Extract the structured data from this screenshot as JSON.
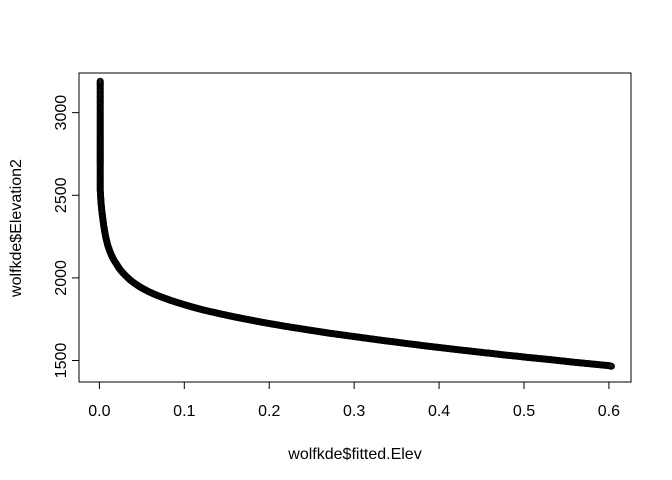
{
  "chart_data": {
    "type": "scatter",
    "xlabel": "wolfkde$fitted.Elev",
    "ylabel": "wolfkde$Elevation2",
    "xlim": [
      -0.024,
      0.626
    ],
    "ylim": [
      1370,
      3240
    ],
    "xticks": [
      0.0,
      0.1,
      0.2,
      0.3,
      0.4,
      0.5,
      0.6
    ],
    "xtick_labels": [
      "0.0",
      "0.1",
      "0.2",
      "0.3",
      "0.4",
      "0.5",
      "0.6"
    ],
    "yticks": [
      1500,
      2000,
      2500,
      3000
    ],
    "ytick_labels": [
      "1500",
      "2000",
      "2500",
      "3000"
    ],
    "grid": false,
    "marker": "open-circle",
    "marker_color": "#000000",
    "series": [
      {
        "x": [
          0.001,
          0.001,
          0.001,
          0.001,
          0.001,
          0.001,
          0.001,
          0.001,
          0.001,
          0.001,
          0.001,
          0.001,
          0.001,
          0.001,
          0.001,
          0.001,
          0.001,
          0.001,
          0.001,
          0.001,
          0.0015,
          0.002,
          0.003,
          0.004,
          0.005,
          0.006,
          0.007,
          0.008,
          0.01,
          0.012,
          0.014,
          0.016,
          0.018,
          0.02,
          0.023,
          0.026,
          0.03,
          0.034,
          0.038,
          0.042,
          0.047,
          0.052,
          0.058,
          0.064,
          0.07,
          0.077,
          0.085,
          0.093,
          0.1,
          0.11,
          0.12,
          0.13,
          0.14,
          0.15,
          0.16,
          0.17,
          0.18,
          0.19,
          0.2,
          0.21,
          0.22,
          0.23,
          0.24,
          0.25,
          0.26,
          0.27,
          0.28,
          0.29,
          0.3,
          0.31,
          0.32,
          0.33,
          0.34,
          0.35,
          0.36,
          0.37,
          0.38,
          0.39,
          0.4,
          0.41,
          0.42,
          0.43,
          0.44,
          0.45,
          0.46,
          0.47,
          0.48,
          0.49,
          0.5,
          0.51,
          0.52,
          0.53,
          0.54,
          0.55,
          0.56,
          0.57,
          0.58,
          0.59,
          0.6,
          0.603
        ],
        "y": [
          3190,
          3160,
          3070,
          3010,
          2980,
          2950,
          2920,
          2890,
          2860,
          2830,
          2800,
          2770,
          2740,
          2710,
          2680,
          2650,
          2620,
          2590,
          2560,
          2530,
          2490,
          2450,
          2400,
          2360,
          2320,
          2290,
          2260,
          2235,
          2195,
          2165,
          2140,
          2118,
          2100,
          2085,
          2060,
          2040,
          2018,
          1998,
          1980,
          1965,
          1948,
          1933,
          1917,
          1903,
          1890,
          1877,
          1862,
          1849,
          1838,
          1823,
          1809,
          1797,
          1785,
          1774,
          1763,
          1753,
          1743,
          1733,
          1724,
          1715,
          1706,
          1698,
          1690,
          1682,
          1674,
          1666,
          1659,
          1652,
          1645,
          1638,
          1631,
          1624,
          1617,
          1611,
          1604,
          1598,
          1591,
          1585,
          1579,
          1573,
          1567,
          1561,
          1555,
          1549,
          1544,
          1538,
          1532,
          1527,
          1521,
          1516,
          1511,
          1506,
          1500,
          1495,
          1489,
          1484,
          1479,
          1474,
          1469,
          1465
        ]
      }
    ]
  }
}
